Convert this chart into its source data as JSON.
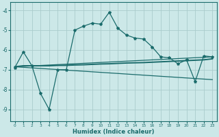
{
  "xlabel": "Humidex (Indice chaleur)",
  "ylabel": "",
  "xlim": [
    -0.5,
    23.5
  ],
  "ylim": [
    -9.6,
    -3.6
  ],
  "yticks": [
    -9,
    -8,
    -7,
    -6,
    -5,
    -4
  ],
  "xticks": [
    0,
    1,
    2,
    3,
    4,
    5,
    6,
    7,
    8,
    9,
    10,
    11,
    12,
    13,
    14,
    15,
    16,
    17,
    18,
    19,
    20,
    21,
    22,
    23
  ],
  "bg_color": "#cce8e8",
  "grid_color": "#aacccc",
  "line_color": "#1a6b6b",
  "series1_x": [
    0,
    1,
    2,
    3,
    4,
    5,
    6,
    7,
    8,
    9,
    10,
    11,
    12,
    13,
    14,
    15,
    16,
    17,
    18,
    19,
    20,
    21,
    22,
    23
  ],
  "series1_y": [
    -6.9,
    -6.1,
    -6.8,
    -8.2,
    -9.0,
    -7.0,
    -7.0,
    -5.0,
    -4.8,
    -4.65,
    -4.7,
    -4.1,
    -4.9,
    -5.25,
    -5.4,
    -5.45,
    -5.85,
    -6.35,
    -6.4,
    -6.7,
    -6.5,
    -7.6,
    -6.3,
    -6.35
  ],
  "series2_x": [
    0,
    1,
    2,
    3,
    4,
    5,
    6,
    7,
    8,
    9,
    10,
    11,
    12,
    13,
    14,
    15,
    16,
    17,
    18,
    19,
    20,
    21,
    22,
    23
  ],
  "series2_y": [
    -6.85,
    -6.8,
    -6.8,
    -6.8,
    -6.8,
    -6.78,
    -6.78,
    -6.76,
    -6.75,
    -6.73,
    -6.71,
    -6.7,
    -6.68,
    -6.66,
    -6.65,
    -6.64,
    -6.62,
    -6.6,
    -6.58,
    -6.56,
    -6.54,
    -6.52,
    -6.5,
    -6.45
  ],
  "series3_x": [
    0,
    23
  ],
  "series3_y": [
    -6.85,
    -6.35
  ],
  "series4_x": [
    0,
    23
  ],
  "series4_y": [
    -6.85,
    -7.5
  ]
}
